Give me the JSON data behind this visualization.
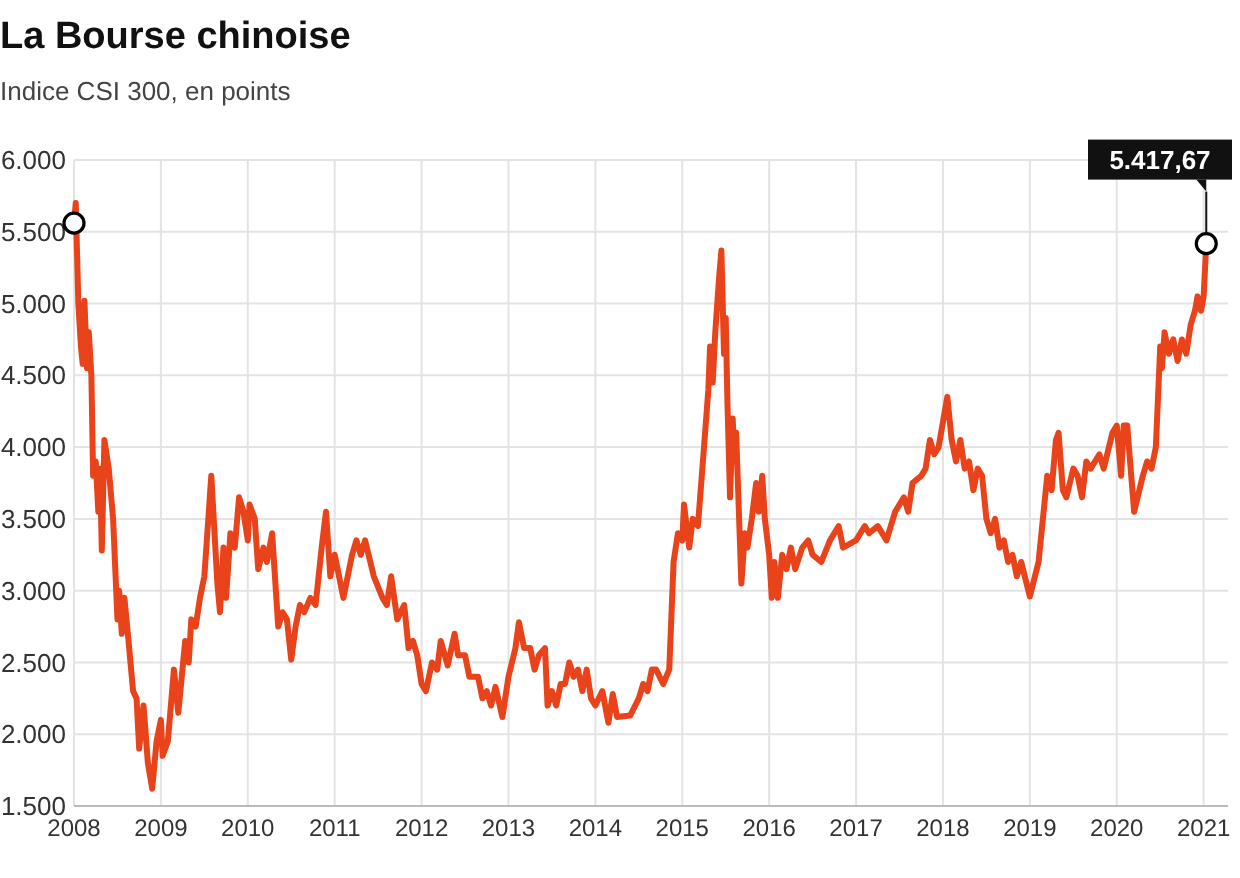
{
  "chart_data": {
    "type": "line",
    "title": "La Bourse chinoise",
    "subtitle": "Indice CSI 300, en points",
    "xlim": [
      2008,
      2021.05
    ],
    "xticks": [
      2008,
      2009,
      2010,
      2011,
      2012,
      2013,
      2014,
      2015,
      2016,
      2017,
      2018,
      2019,
      2020,
      2021
    ],
    "ylim": [
      1500,
      6000
    ],
    "yticks": [
      {
        "value": 1500,
        "label": "1.500"
      },
      {
        "value": 2000,
        "label": "2.000"
      },
      {
        "value": 2500,
        "label": "2.500"
      },
      {
        "value": 3000,
        "label": "3.000"
      },
      {
        "value": 3500,
        "label": "3.500"
      },
      {
        "value": 4000,
        "label": "4.000"
      },
      {
        "value": 4500,
        "label": "4.500"
      },
      {
        "value": 5000,
        "label": "5.000"
      },
      {
        "value": 5500,
        "label": "5.500"
      },
      {
        "value": 6000,
        "label": "6.000"
      }
    ],
    "grid": true,
    "line_style": "solid",
    "annotations": [
      {
        "text": "5.417,67",
        "x": 2021.03,
        "y": 5417.67
      }
    ],
    "series": [
      {
        "color": "#e8431a",
        "x": [
          2008.0,
          2008.02,
          2008.05,
          2008.08,
          2008.1,
          2008.12,
          2008.15,
          2008.17,
          2008.2,
          2008.22,
          2008.25,
          2008.28,
          2008.3,
          2008.32,
          2008.35,
          2008.4,
          2008.45,
          2008.5,
          2008.52,
          2008.55,
          2008.58,
          2008.62,
          2008.65,
          2008.68,
          2008.72,
          2008.75,
          2008.8,
          2008.85,
          2008.9,
          2008.95,
          2009.0,
          2009.02,
          2009.08,
          2009.15,
          2009.2,
          2009.28,
          2009.32,
          2009.35,
          2009.4,
          2009.45,
          2009.5,
          2009.58,
          2009.65,
          2009.68,
          2009.72,
          2009.75,
          2009.8,
          2009.85,
          2009.9,
          2009.95,
          2010.0,
          2010.02,
          2010.08,
          2010.12,
          2010.18,
          2010.22,
          2010.28,
          2010.35,
          2010.4,
          2010.45,
          2010.5,
          2010.55,
          2010.6,
          2010.65,
          2010.72,
          2010.78,
          2010.85,
          2010.9,
          2010.95,
          2011.0,
          2011.05,
          2011.1,
          2011.2,
          2011.25,
          2011.3,
          2011.35,
          2011.45,
          2011.55,
          2011.6,
          2011.65,
          2011.72,
          2011.8,
          2011.85,
          2011.9,
          2011.95,
          2012.0,
          2012.05,
          2012.12,
          2012.18,
          2012.22,
          2012.3,
          2012.38,
          2012.42,
          2012.5,
          2012.55,
          2012.65,
          2012.7,
          2012.75,
          2012.8,
          2012.85,
          2012.93,
          2013.0,
          2013.08,
          2013.12,
          2013.18,
          2013.25,
          2013.3,
          2013.35,
          2013.42,
          2013.45,
          2013.5,
          2013.55,
          2013.6,
          2013.65,
          2013.7,
          2013.75,
          2013.8,
          2013.85,
          2013.9,
          2013.95,
          2014.0,
          2014.08,
          2014.15,
          2014.2,
          2014.25,
          2014.4,
          2014.5,
          2014.55,
          2014.6,
          2014.65,
          2014.7,
          2014.78,
          2014.85,
          2014.9,
          2014.95,
          2015.0,
          2015.02,
          2015.08,
          2015.12,
          2015.18,
          2015.25,
          2015.3,
          2015.32,
          2015.35,
          2015.38,
          2015.42,
          2015.45,
          2015.48,
          2015.5,
          2015.52,
          2015.55,
          2015.58,
          2015.6,
          2015.62,
          2015.68,
          2015.72,
          2015.75,
          2015.8,
          2015.85,
          2015.88,
          2015.92,
          2015.95,
          2016.0,
          2016.03,
          2016.06,
          2016.1,
          2016.15,
          2016.2,
          2016.25,
          2016.3,
          2016.38,
          2016.45,
          2016.5,
          2016.6,
          2016.7,
          2016.8,
          2016.85,
          2017.0,
          2017.1,
          2017.15,
          2017.25,
          2017.35,
          2017.45,
          2017.55,
          2017.6,
          2017.65,
          2017.75,
          2017.8,
          2017.85,
          2017.9,
          2017.95,
          2018.05,
          2018.1,
          2018.15,
          2018.2,
          2018.25,
          2018.3,
          2018.35,
          2018.4,
          2018.45,
          2018.5,
          2018.55,
          2018.6,
          2018.65,
          2018.7,
          2018.75,
          2018.8,
          2018.85,
          2018.9,
          2019.0,
          2019.1,
          2019.15,
          2019.2,
          2019.25,
          2019.3,
          2019.33,
          2019.38,
          2019.42,
          2019.5,
          2019.55,
          2019.6,
          2019.65,
          2019.7,
          2019.8,
          2019.85,
          2019.95,
          2020.0,
          2020.05,
          2020.08,
          2020.12,
          2020.2,
          2020.3,
          2020.35,
          2020.4,
          2020.45,
          2020.5,
          2020.52,
          2020.55,
          2020.6,
          2020.65,
          2020.7,
          2020.75,
          2020.8,
          2020.85,
          2020.9,
          2020.93,
          2020.97,
          2021.0,
          2021.03
        ],
        "values": [
          5560,
          5700,
          5000,
          4700,
          4580,
          5020,
          4550,
          4800,
          4500,
          3800,
          3900,
          3550,
          3850,
          3280,
          4050,
          3850,
          3500,
          2800,
          3000,
          2700,
          2950,
          2700,
          2500,
          2300,
          2250,
          1900,
          2200,
          1800,
          1620,
          1950,
          2100,
          1850,
          1950,
          2450,
          2150,
          2650,
          2500,
          2800,
          2750,
          2950,
          3100,
          3800,
          3050,
          2850,
          3300,
          2950,
          3400,
          3300,
          3650,
          3550,
          3350,
          3600,
          3500,
          3150,
          3300,
          3200,
          3400,
          2750,
          2850,
          2800,
          2520,
          2750,
          2900,
          2850,
          2950,
          2900,
          3300,
          3550,
          3100,
          3250,
          3100,
          2950,
          3250,
          3350,
          3250,
          3350,
          3100,
          2950,
          2900,
          3100,
          2800,
          2900,
          2600,
          2650,
          2550,
          2350,
          2300,
          2500,
          2450,
          2650,
          2480,
          2700,
          2550,
          2550,
          2400,
          2400,
          2250,
          2300,
          2200,
          2330,
          2120,
          2400,
          2600,
          2780,
          2600,
          2600,
          2450,
          2550,
          2600,
          2200,
          2300,
          2200,
          2350,
          2350,
          2500,
          2400,
          2450,
          2300,
          2450,
          2250,
          2200,
          2300,
          2080,
          2280,
          2120,
          2130,
          2250,
          2350,
          2300,
          2450,
          2450,
          2350,
          2450,
          3200,
          3400,
          3350,
          3600,
          3300,
          3500,
          3450,
          4000,
          4400,
          4700,
          4450,
          4800,
          5150,
          5370,
          4650,
          4900,
          4300,
          3650,
          4200,
          3900,
          4100,
          3050,
          3400,
          3300,
          3500,
          3750,
          3550,
          3800,
          3500,
          3250,
          2950,
          3200,
          2950,
          3250,
          3150,
          3300,
          3150,
          3300,
          3350,
          3250,
          3200,
          3350,
          3450,
          3300,
          3350,
          3450,
          3400,
          3450,
          3350,
          3550,
          3650,
          3550,
          3750,
          3800,
          3850,
          4050,
          3950,
          4000,
          4350,
          4050,
          3900,
          4050,
          3850,
          3900,
          3700,
          3850,
          3800,
          3500,
          3400,
          3500,
          3300,
          3350,
          3200,
          3250,
          3100,
          3200,
          2960,
          3200,
          3500,
          3800,
          3700,
          4050,
          4100,
          3700,
          3650,
          3850,
          3800,
          3650,
          3900,
          3850,
          3950,
          3850,
          4100,
          4150,
          3800,
          4150,
          4150,
          3550,
          3800,
          3900,
          3850,
          4000,
          4700,
          4550,
          4800,
          4650,
          4750,
          4600,
          4750,
          4650,
          4850,
          4950,
          5050,
          4950,
          5050,
          5417.67
        ]
      },
      {
        "type": "scatter",
        "marker": "circle",
        "color": "#000000",
        "x": [
          2008.0,
          2021.03
        ],
        "values": [
          5560,
          5417.67
        ]
      }
    ]
  }
}
